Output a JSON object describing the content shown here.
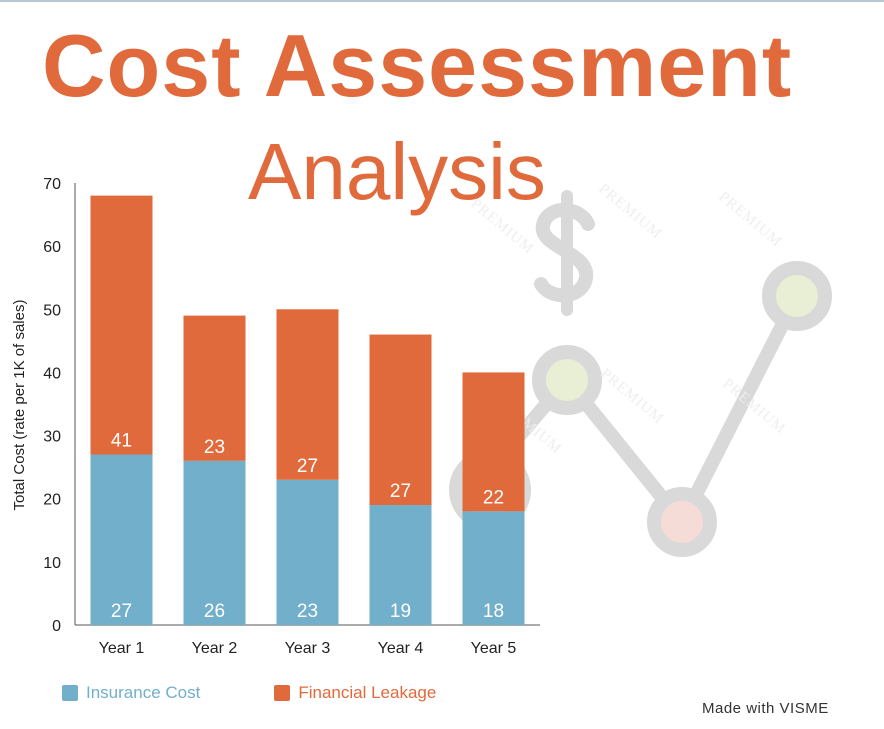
{
  "title": "Cost Assessment",
  "subtitle": "Analysis",
  "credit": "Made with VISME",
  "colors": {
    "title": "#e06a3b",
    "insurance": "#72afcb",
    "leakage": "#e06a3b",
    "axis": "#555555"
  },
  "decoration_watermark": "PREMIUM",
  "chart_data": {
    "type": "bar",
    "stacked": true,
    "categories": [
      "Year 1",
      "Year 2",
      "Year 3",
      "Year 4",
      "Year 5"
    ],
    "series": [
      {
        "name": "Insurance Cost",
        "values": [
          27,
          26,
          23,
          19,
          18
        ],
        "labels": [
          "27",
          "26",
          "23",
          "19",
          "18"
        ]
      },
      {
        "name": "Financial Leakage",
        "values": [
          41,
          23,
          27,
          27,
          22
        ],
        "labels": [
          "41",
          "23",
          "27",
          "27",
          "22"
        ]
      }
    ],
    "ylabel": "Total Cost (rate per 1K of sales)",
    "ylim": [
      0,
      70
    ],
    "yticks": [
      "0",
      "10",
      "20",
      "30",
      "40",
      "50",
      "60",
      "70"
    ],
    "legend": "bottom-left",
    "grid": false
  }
}
